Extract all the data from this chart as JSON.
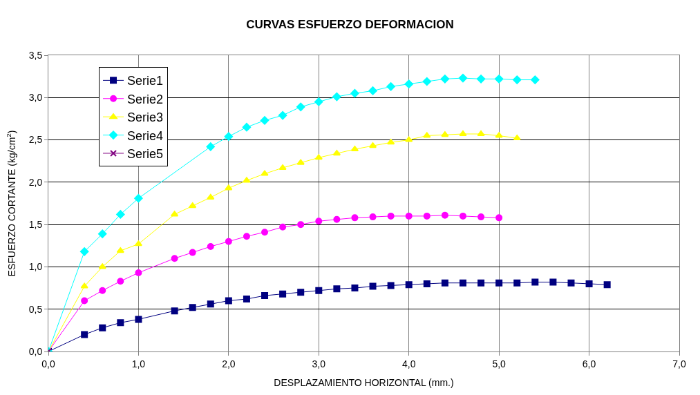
{
  "chart_data": {
    "type": "line",
    "title": "CURVAS ESFUERZO DEFORMACION",
    "xlabel": "DESPLAZAMIENTO HORIZONTAL (mm.)",
    "ylabel": "ESFUERZO CORTANTE (kg/cm$^{2}$)",
    "xlim": [
      0,
      7
    ],
    "ylim": [
      0,
      3.5
    ],
    "xticks": [
      {
        "value": 0,
        "label": "0,0"
      },
      {
        "value": 1,
        "label": "1,0"
      },
      {
        "value": 2,
        "label": "2,0"
      },
      {
        "value": 3,
        "label": "3,0"
      },
      {
        "value": 4,
        "label": "4,0"
      },
      {
        "value": 5,
        "label": "5,0"
      },
      {
        "value": 6,
        "label": "6,0"
      },
      {
        "value": 7,
        "label": "7,0"
      }
    ],
    "yticks": [
      {
        "value": 0,
        "label": "0,0"
      },
      {
        "value": 0.5,
        "label": "0,5"
      },
      {
        "value": 1,
        "label": "1,0"
      },
      {
        "value": 1.5,
        "label": "1,5"
      },
      {
        "value": 2,
        "label": "2,0"
      },
      {
        "value": 2.5,
        "label": "2,5"
      },
      {
        "value": 3,
        "label": "3,0"
      },
      {
        "value": 3.5,
        "label": "3,5"
      }
    ],
    "grid": true,
    "legend": "top left",
    "line_style": "solid",
    "series": [
      {
        "name": "Serie1",
        "color": "#000080",
        "marker": "square",
        "x": [
          0,
          0.4,
          0.6,
          0.8,
          1.0,
          1.4,
          1.6,
          1.8,
          2.0,
          2.2,
          2.4,
          2.6,
          2.8,
          3.0,
          3.2,
          3.4,
          3.6,
          3.8,
          4.0,
          4.2,
          4.4,
          4.6,
          4.8,
          5.0,
          5.2,
          5.4,
          5.6,
          5.8,
          6.0,
          6.2
        ],
        "values": [
          0,
          0.2,
          0.28,
          0.34,
          0.38,
          0.48,
          0.52,
          0.56,
          0.6,
          0.62,
          0.66,
          0.68,
          0.7,
          0.72,
          0.74,
          0.75,
          0.77,
          0.78,
          0.79,
          0.8,
          0.81,
          0.81,
          0.81,
          0.81,
          0.81,
          0.82,
          0.82,
          0.81,
          0.8,
          0.79
        ]
      },
      {
        "name": "Serie2",
        "color": "#ff00ff",
        "marker": "circle",
        "x": [
          0,
          0.4,
          0.6,
          0.8,
          1.0,
          1.4,
          1.6,
          1.8,
          2.0,
          2.2,
          2.4,
          2.6,
          2.8,
          3.0,
          3.2,
          3.4,
          3.6,
          3.8,
          4.0,
          4.2,
          4.4,
          4.6,
          4.8,
          5.0
        ],
        "values": [
          0,
          0.6,
          0.72,
          0.83,
          0.93,
          1.1,
          1.17,
          1.24,
          1.3,
          1.36,
          1.41,
          1.47,
          1.5,
          1.54,
          1.56,
          1.58,
          1.59,
          1.6,
          1.6,
          1.6,
          1.61,
          1.6,
          1.59,
          1.58
        ]
      },
      {
        "name": "Serie3",
        "color": "#ffff00",
        "marker": "triangle",
        "x": [
          0,
          0.4,
          0.6,
          0.8,
          1.0,
          1.4,
          1.6,
          1.8,
          2.0,
          2.2,
          2.4,
          2.6,
          2.8,
          3.0,
          3.2,
          3.4,
          3.6,
          3.8,
          4.0,
          4.2,
          4.4,
          4.6,
          4.8,
          5.0,
          5.2
        ],
        "values": [
          0,
          0.77,
          1.0,
          1.19,
          1.27,
          1.62,
          1.72,
          1.82,
          1.93,
          2.02,
          2.1,
          2.17,
          2.23,
          2.29,
          2.34,
          2.39,
          2.43,
          2.47,
          2.5,
          2.55,
          2.56,
          2.57,
          2.57,
          2.55,
          2.52
        ]
      },
      {
        "name": "Serie4",
        "color": "#00ffff",
        "marker": "diamond",
        "x": [
          0,
          0.4,
          0.6,
          0.8,
          1.0,
          1.4,
          1.6,
          1.8,
          2.0,
          2.2,
          2.4,
          2.6,
          2.8,
          3.0,
          3.2,
          3.4,
          3.6,
          3.8,
          4.0,
          4.2,
          4.4,
          4.6,
          4.8,
          5.0,
          5.2,
          5.4
        ],
        "values": [
          0,
          1.18,
          1.39,
          1.62,
          1.81,
          null,
          null,
          2.42,
          2.54,
          2.65,
          2.73,
          2.79,
          2.89,
          2.95,
          3.01,
          3.05,
          3.08,
          3.13,
          3.16,
          3.19,
          3.22,
          3.23,
          3.22,
          3.22,
          3.21,
          3.21
        ]
      },
      {
        "name": "Serie5",
        "color": "#800080",
        "marker": "cross",
        "x": [
          0
        ],
        "values": [
          0
        ]
      }
    ]
  }
}
